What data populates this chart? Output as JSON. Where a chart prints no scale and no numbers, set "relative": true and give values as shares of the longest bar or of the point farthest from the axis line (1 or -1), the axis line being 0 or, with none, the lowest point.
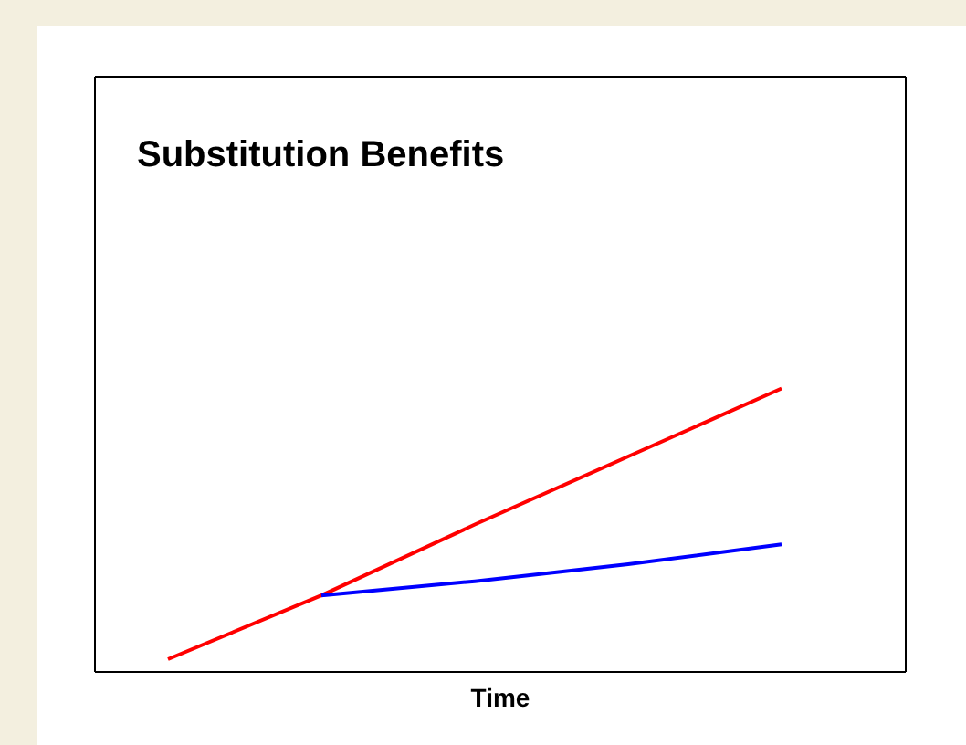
{
  "chart_data": {
    "type": "line",
    "title": "Substitution Benefits",
    "xlabel": "Time",
    "relative": true,
    "categories": [
      null,
      null,
      null,
      null,
      null
    ],
    "series": [
      {
        "color": "#ff0000",
        "values": [
          0.045,
          0.27,
          0.52,
          0.76,
          1
        ]
      },
      {
        "color": "#0000ff",
        "values": [
          null,
          0.27,
          0.32,
          0.38,
          0.45
        ]
      }
    ],
    "legend": false,
    "marker": "none"
  }
}
